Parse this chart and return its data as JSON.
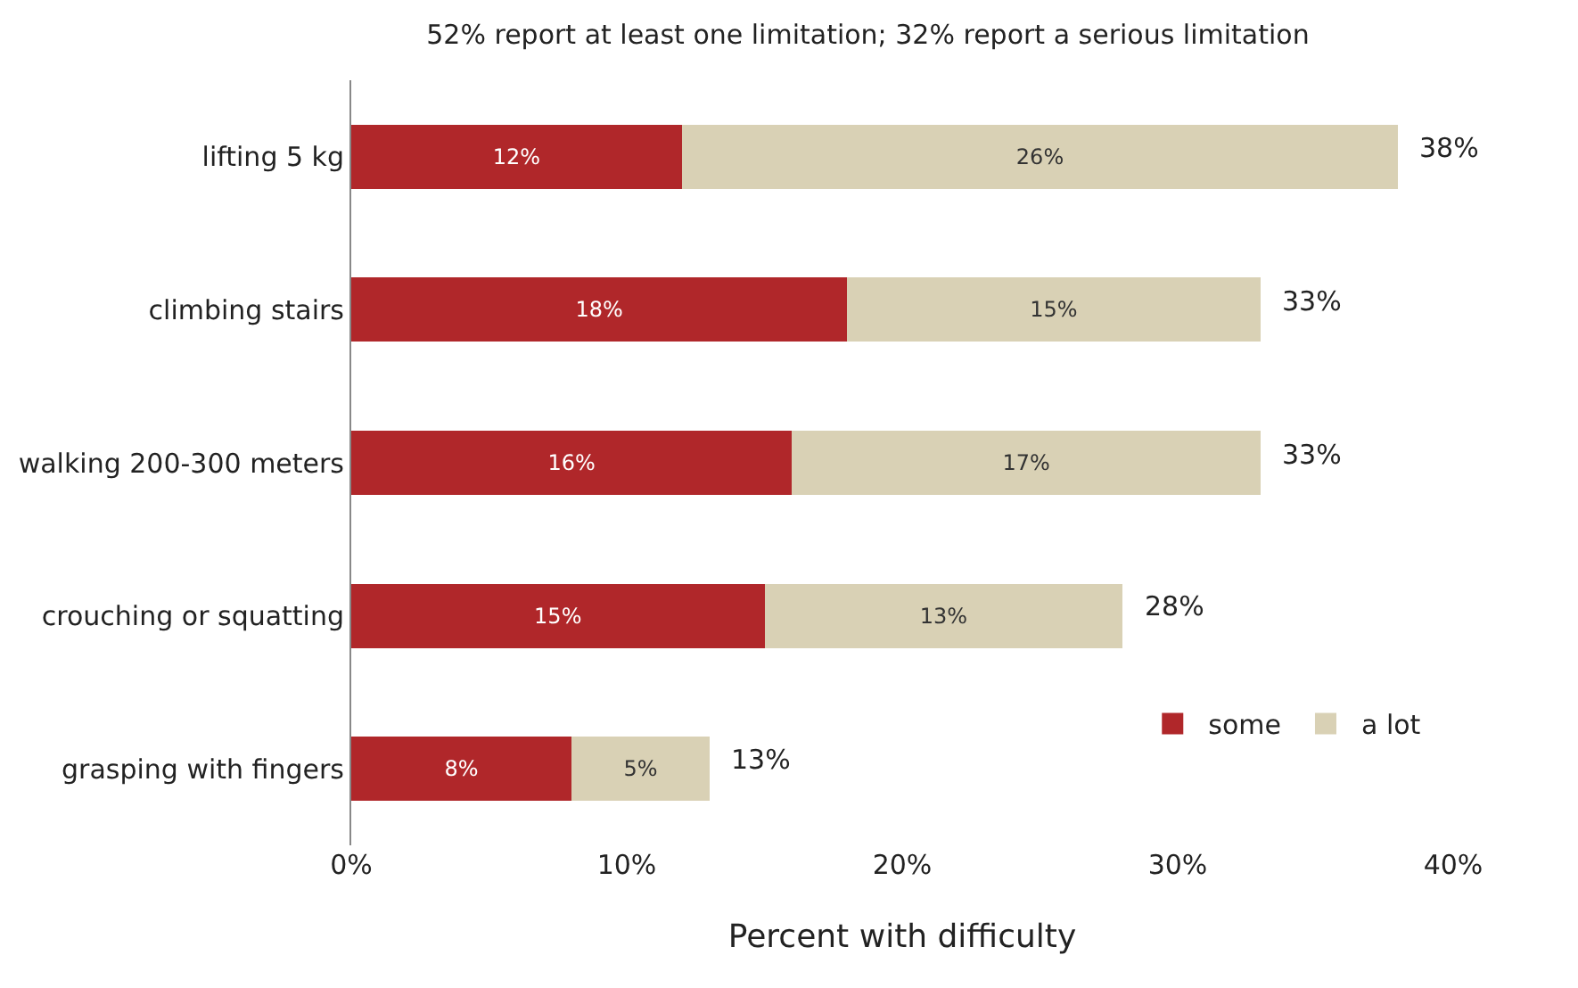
{
  "chart_data": {
    "type": "bar",
    "orientation": "horizontal",
    "stacked": true,
    "title": "52% report at least one limitation; 32% report a serious limitation",
    "xlabel": "Percent with difficulty",
    "categories": [
      "lifting 5 kg",
      "climbing stairs",
      "walking 200-300 meters",
      "crouching or squatting",
      "grasping with fingers"
    ],
    "series": [
      {
        "name": "some",
        "color": "#b0272a",
        "values": [
          12,
          18,
          16,
          15,
          8
        ],
        "value_labels": [
          "12%",
          "18%",
          "16%",
          "15%",
          "8%"
        ]
      },
      {
        "name": "a lot",
        "color": "#d9d1b5",
        "values": [
          26,
          15,
          17,
          13,
          5
        ],
        "value_labels": [
          "26%",
          "15%",
          "17%",
          "13%",
          "5%"
        ]
      }
    ],
    "totals": [
      "38%",
      "33%",
      "33%",
      "28%",
      "13%"
    ],
    "xlim": [
      0,
      40
    ],
    "xticks": [
      {
        "value": 0,
        "label": "0%"
      },
      {
        "value": 10,
        "label": "10%"
      },
      {
        "value": 20,
        "label": "20%"
      },
      {
        "value": 30,
        "label": "30%"
      },
      {
        "value": 40,
        "label": "40%"
      }
    ],
    "legend": "bottom right"
  }
}
